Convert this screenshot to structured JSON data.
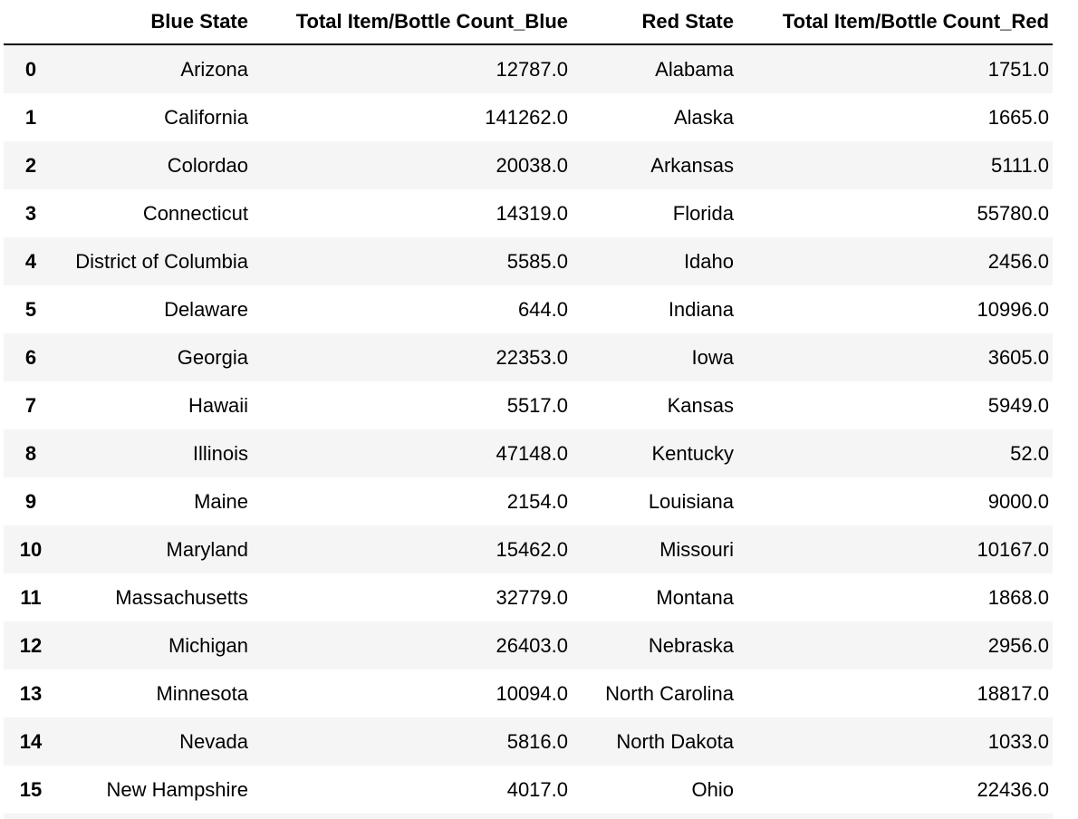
{
  "table": {
    "columns": [
      "",
      "Blue State",
      "Total Item/Bottle Count_Blue",
      "Red State",
      "Total Item/Bottle Count_Red"
    ],
    "rows": [
      {
        "index": "0",
        "blue_state": "Arizona",
        "blue_count": "12787.0",
        "red_state": "Alabama",
        "red_count": "1751.0"
      },
      {
        "index": "1",
        "blue_state": "California",
        "blue_count": "141262.0",
        "red_state": "Alaska",
        "red_count": "1665.0"
      },
      {
        "index": "2",
        "blue_state": "Colordao",
        "blue_count": "20038.0",
        "red_state": "Arkansas",
        "red_count": "5111.0"
      },
      {
        "index": "3",
        "blue_state": "Connecticut",
        "blue_count": "14319.0",
        "red_state": "Florida",
        "red_count": "55780.0"
      },
      {
        "index": "4",
        "blue_state": "District of Columbia",
        "blue_count": "5585.0",
        "red_state": "Idaho",
        "red_count": "2456.0"
      },
      {
        "index": "5",
        "blue_state": "Delaware",
        "blue_count": "644.0",
        "red_state": "Indiana",
        "red_count": "10996.0"
      },
      {
        "index": "6",
        "blue_state": "Georgia",
        "blue_count": "22353.0",
        "red_state": "Iowa",
        "red_count": "3605.0"
      },
      {
        "index": "7",
        "blue_state": "Hawaii",
        "blue_count": "5517.0",
        "red_state": "Kansas",
        "red_count": "5949.0"
      },
      {
        "index": "8",
        "blue_state": "Illinois",
        "blue_count": "47148.0",
        "red_state": "Kentucky",
        "red_count": "52.0"
      },
      {
        "index": "9",
        "blue_state": "Maine",
        "blue_count": "2154.0",
        "red_state": "Louisiana",
        "red_count": "9000.0"
      },
      {
        "index": "10",
        "blue_state": "Maryland",
        "blue_count": "15462.0",
        "red_state": "Missouri",
        "red_count": "10167.0"
      },
      {
        "index": "11",
        "blue_state": "Massachusetts",
        "blue_count": "32779.0",
        "red_state": "Montana",
        "red_count": "1868.0"
      },
      {
        "index": "12",
        "blue_state": "Michigan",
        "blue_count": "26403.0",
        "red_state": "Nebraska",
        "red_count": "2956.0"
      },
      {
        "index": "13",
        "blue_state": "Minnesota",
        "blue_count": "10094.0",
        "red_state": "North Carolina",
        "red_count": "18817.0"
      },
      {
        "index": "14",
        "blue_state": "Nevada",
        "blue_count": "5816.0",
        "red_state": "North Dakota",
        "red_count": "1033.0"
      },
      {
        "index": "15",
        "blue_state": "New Hampshire",
        "blue_count": "4017.0",
        "red_state": "Ohio",
        "red_count": "22436.0"
      }
    ]
  }
}
